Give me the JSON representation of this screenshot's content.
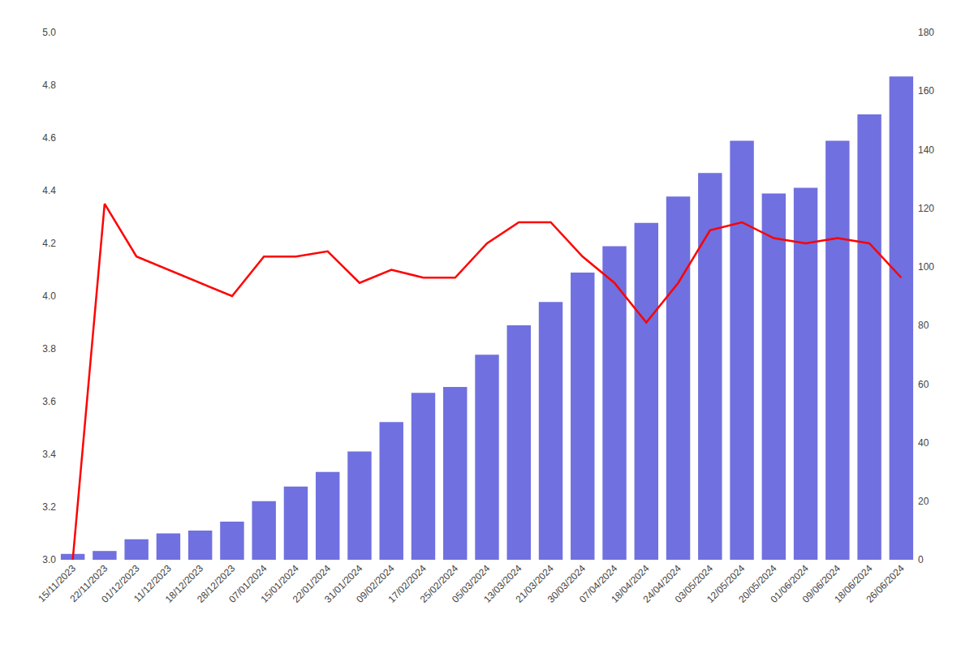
{
  "chart_data": {
    "type": "bar",
    "categories": [
      "15/11/2023",
      "22/11/2023",
      "01/12/2023",
      "11/12/2023",
      "18/12/2023",
      "28/12/2023",
      "07/01/2024",
      "15/01/2024",
      "22/01/2024",
      "31/01/2024",
      "09/02/2024",
      "17/02/2024",
      "25/02/2024",
      "05/03/2024",
      "13/03/2024",
      "21/03/2024",
      "30/03/2024",
      "07/04/2024",
      "18/04/2024",
      "24/04/2024",
      "03/05/2024",
      "12/05/2024",
      "20/05/2024",
      "01/06/2024",
      "09/06/2024",
      "18/06/2024",
      "26/06/2024"
    ],
    "series": [
      {
        "type": "bar",
        "axis": "y2",
        "color": "#7070e0",
        "values": [
          2,
          3,
          7,
          9,
          10,
          13,
          20,
          25,
          30,
          37,
          47,
          57,
          59,
          70,
          80,
          88,
          98,
          107,
          115,
          124,
          132,
          143,
          125,
          127,
          143,
          152,
          165
        ]
      },
      {
        "type": "line",
        "color": "#ff0000",
        "values": [
          3.0,
          4.35,
          4.15,
          4.1,
          4.05,
          4.0,
          4.15,
          4.15,
          4.17,
          4.05,
          4.1,
          4.07,
          4.07,
          4.2,
          4.28,
          4.28,
          4.15,
          4.05,
          3.9,
          4.05,
          4.25,
          4.28,
          4.22,
          4.2,
          4.22,
          4.2,
          4.07
        ]
      }
    ],
    "ylim": [
      3.0,
      5.0
    ],
    "yticks": [
      {
        "value": 3.0,
        "label": "3.0"
      },
      3.2,
      3.4,
      3.6,
      3.8,
      {
        "value": 4.0,
        "label": "4.0"
      },
      4.2,
      4.4,
      4.6,
      4.8,
      {
        "value": 5.0,
        "label": "5.0"
      }
    ],
    "y2lim": [
      0,
      180
    ],
    "y2ticks": [
      0,
      20,
      40,
      60,
      80,
      100,
      120,
      140,
      160,
      180
    ],
    "grid": false
  }
}
